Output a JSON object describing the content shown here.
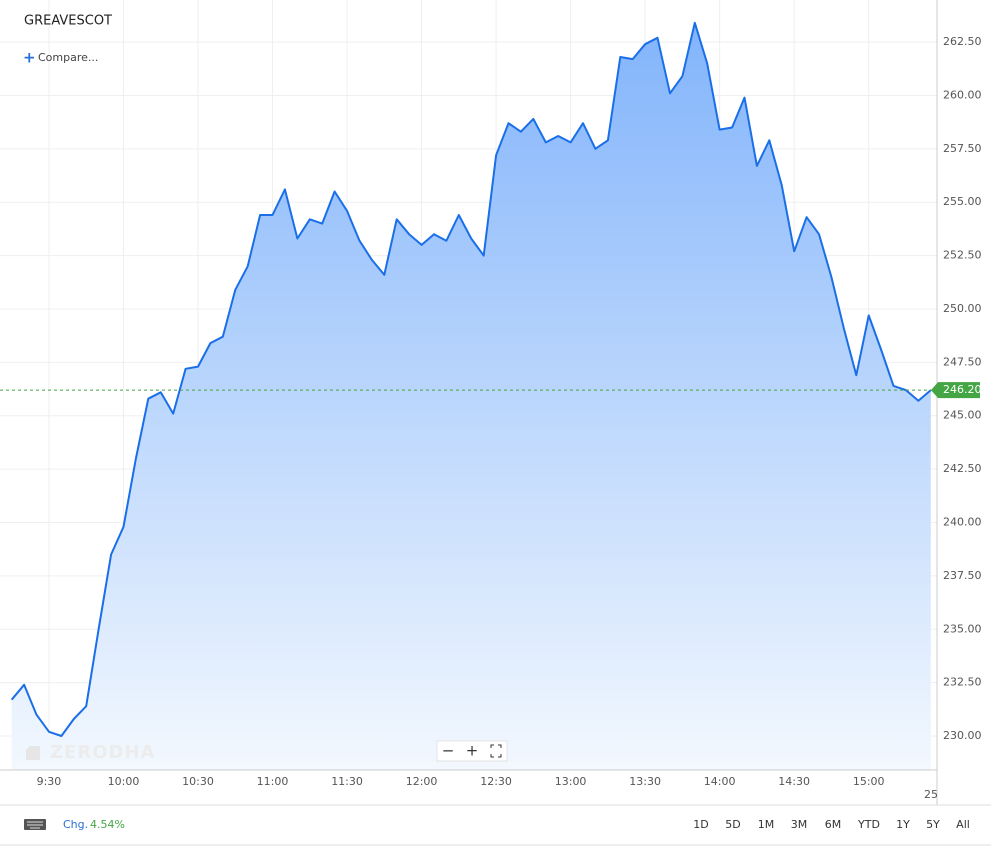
{
  "symbol": "GREAVESCOT",
  "compare": "Compare...",
  "watermark": "ZERODHA",
  "chart_data": {
    "type": "line",
    "categories": [
      null,
      null,
      null,
      "9:30",
      null,
      null,
      null,
      null,
      null,
      "10:00",
      null,
      null,
      null,
      null,
      null,
      "10:30",
      null,
      null,
      null,
      null,
      null,
      "11:00",
      null,
      null,
      null,
      null,
      null,
      "11:30",
      null,
      null,
      null,
      null,
      null,
      "12:00",
      null,
      null,
      null,
      null,
      null,
      "12:30",
      null,
      null,
      null,
      null,
      null,
      "13:00",
      null,
      null,
      null,
      null,
      null,
      "13:30",
      null,
      null,
      null,
      null,
      null,
      "14:00",
      null,
      null,
      null,
      null,
      null,
      "14:30",
      null,
      null,
      null,
      null,
      null,
      "15:00",
      null,
      null,
      null,
      null,
      null
    ],
    "values": [
      231.7,
      232.4,
      231,
      230.2,
      230,
      230.8,
      231.4,
      235,
      238.5,
      239.8,
      243,
      245.8,
      246.1,
      245.1,
      247.2,
      247.3,
      248.4,
      248.7,
      250.9,
      252,
      254.4,
      254.4,
      255.6,
      253.3,
      254.2,
      254,
      255.5,
      254.6,
      253.2,
      252.3,
      251.6,
      254.2,
      253.5,
      253,
      253.5,
      253.2,
      254.4,
      253.3,
      252.5,
      257.2,
      258.7,
      258.3,
      258.9,
      257.8,
      258.1,
      257.8,
      258.7,
      257.5,
      257.9,
      261.8,
      261.7,
      262.4,
      262.7,
      260.1,
      260.9,
      263.4,
      261.5,
      258.4,
      258.5,
      259.9,
      256.7,
      257.9,
      255.8,
      252.7,
      254.3,
      253.5,
      251.5,
      249.1,
      246.9,
      249.7,
      248.1,
      246.4,
      246.2,
      245.7,
      246.2
    ],
    "color": "#1a6fe8",
    "ylim": [
      228.41,
      264.47
    ],
    "yticks": [
      {
        "value": 230,
        "label": "230.00"
      },
      {
        "value": 232.5,
        "label": "232.50"
      },
      {
        "value": 235,
        "label": "235.00"
      },
      {
        "value": 237.5,
        "label": "237.50"
      },
      {
        "value": 240,
        "label": "240.00"
      },
      {
        "value": 242.5,
        "label": "242.50"
      },
      {
        "value": 245,
        "label": "245.00"
      },
      {
        "value": 247.5,
        "label": "247.50"
      },
      {
        "value": 250,
        "label": "250.00"
      },
      {
        "value": 252.5,
        "label": "252.50"
      },
      {
        "value": 255,
        "label": "255.00"
      },
      {
        "value": 257.5,
        "label": "257.50"
      },
      {
        "value": 260,
        "label": "260.00"
      },
      {
        "value": 262.5,
        "label": "262.50"
      }
    ],
    "grid": true,
    "last_value": {
      "value": 246.2,
      "label": "246.20"
    },
    "last_color": "#44a544",
    "x_edge_label": "25"
  },
  "footer": {
    "chg_label": "Chg.",
    "chg": {
      "value": 4.54,
      "label": "4.54%"
    },
    "ranges": [
      "1D",
      "5D",
      "1M",
      "3M",
      "6M",
      "YTD",
      "1Y",
      "5Y",
      "All"
    ]
  }
}
